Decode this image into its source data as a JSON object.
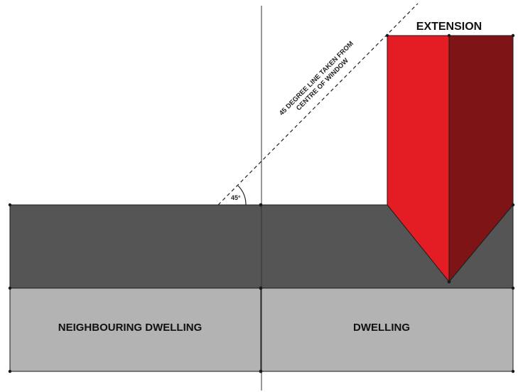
{
  "labels": {
    "extension": "EXTENSION",
    "neighbouring_dwelling": "NEIGHBOURING DWELLING",
    "dwelling": "DWELLING",
    "angle": "45°",
    "rule_line_1": "45 DEGREE LINE TAKEN FROM",
    "rule_line_2": "CENTRE OF WINDOW"
  },
  "colors": {
    "rear_band": "#555555",
    "front_band": "#b3b3b3",
    "extension_light": "#e41c24",
    "extension_dark": "#7e1416",
    "outline": "#1a1a1a"
  }
}
